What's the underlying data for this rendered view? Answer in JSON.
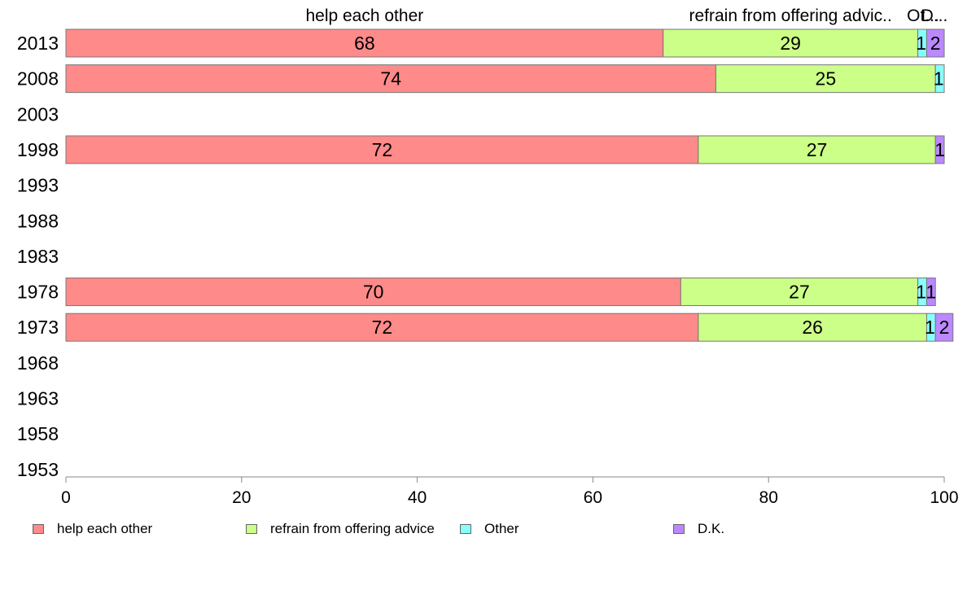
{
  "chart_data": {
    "type": "bar",
    "orientation": "horizontal",
    "stacked": true,
    "categories": [
      "2013",
      "2008",
      "2003",
      "1998",
      "1993",
      "1988",
      "1983",
      "1978",
      "1973",
      "1968",
      "1963",
      "1958",
      "1953"
    ],
    "series": [
      {
        "name": "help each other",
        "color": "#ff8a8a",
        "values": [
          68,
          74,
          null,
          72,
          null,
          null,
          null,
          70,
          72,
          null,
          null,
          null,
          null
        ]
      },
      {
        "name": "refrain from offering advice",
        "color": "#ccff88",
        "values": [
          29,
          25,
          null,
          27,
          null,
          null,
          null,
          27,
          26,
          null,
          null,
          null,
          null
        ]
      },
      {
        "name": "Other",
        "color": "#88ffff",
        "values": [
          1,
          1,
          null,
          0,
          null,
          null,
          null,
          1,
          1,
          null,
          null,
          null,
          null
        ]
      },
      {
        "name": "D.K.",
        "color": "#bb88ff",
        "values": [
          2,
          0,
          null,
          1,
          null,
          null,
          null,
          1,
          2,
          null,
          null,
          null,
          null
        ]
      }
    ],
    "bar_labels": [
      [
        "68",
        "29",
        "1",
        "2"
      ],
      [
        "74",
        "25",
        "1",
        ""
      ],
      [
        "",
        "",
        "",
        ""
      ],
      [
        "72",
        "27",
        "",
        "1"
      ],
      [
        "",
        "",
        "",
        ""
      ],
      [
        "",
        "",
        "",
        ""
      ],
      [
        "",
        "",
        "",
        ""
      ],
      [
        "70",
        "27",
        "1",
        "1"
      ],
      [
        "72",
        "26",
        "1",
        "2"
      ],
      [
        "",
        "",
        "",
        ""
      ],
      [
        "",
        "",
        "",
        ""
      ],
      [
        "",
        "",
        "",
        ""
      ],
      [
        "",
        "",
        "",
        ""
      ]
    ],
    "top_labels": [
      "help each other",
      "refrain from offering advic..",
      "Ot...",
      "D..."
    ],
    "xlim": [
      0,
      100
    ],
    "xticks": [
      0,
      20,
      40,
      60,
      80,
      100
    ],
    "legend_position": "bottom",
    "grid": false
  }
}
